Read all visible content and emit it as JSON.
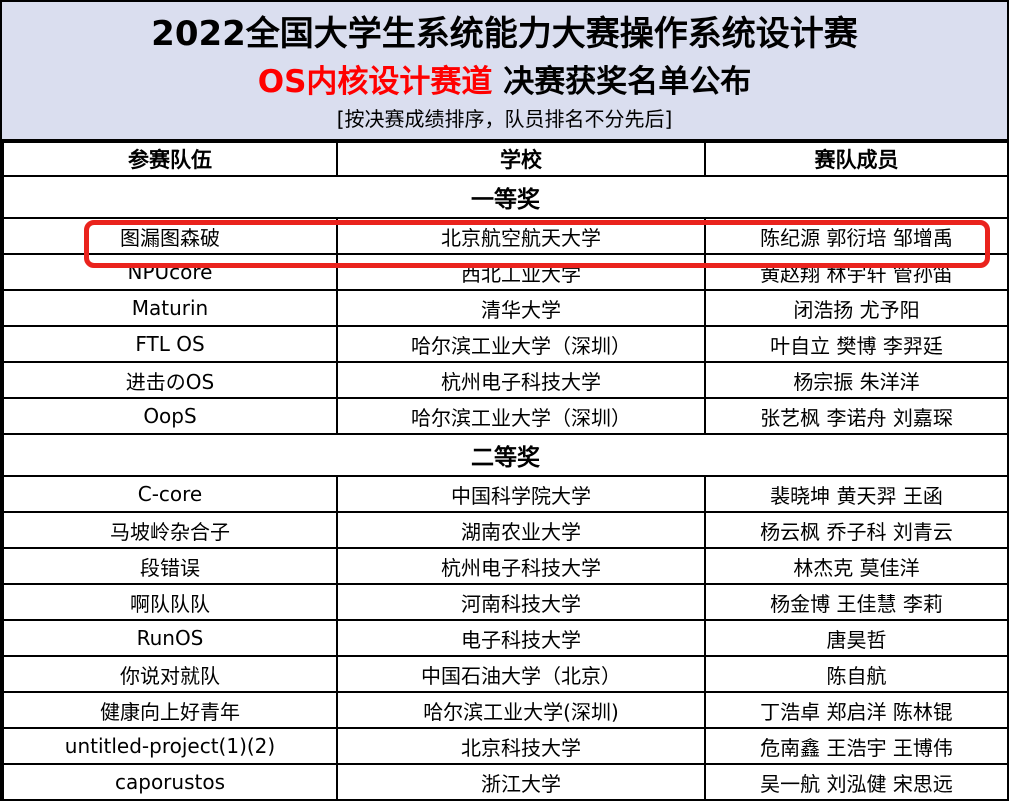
{
  "header": {
    "title": "2022全国大学生系统能力大赛操作系统设计赛",
    "subtitle_red": "OS内核设计赛道",
    "subtitle_black": " 决赛获奖名单公布",
    "note": "[按决赛成绩排序，队员排名不分先后]"
  },
  "table": {
    "columns": [
      "参赛队伍",
      "学校",
      "赛队成员"
    ],
    "sections": [
      {
        "award": "一等奖",
        "rows": [
          {
            "team": "图漏图森破",
            "school": "北京航空航天大学",
            "members": "陈纪源 郭衍培 邹增禹",
            "highlighted": true
          },
          {
            "team": "NPUcore",
            "school": "西北工业大学",
            "members": "黄赵翔 林宇轩 管孙笛",
            "highlighted": false
          },
          {
            "team": "Maturin",
            "school": "清华大学",
            "members": "闭浩扬 尤予阳",
            "highlighted": false
          },
          {
            "team": "FTL OS",
            "school": "哈尔滨工业大学（深圳）",
            "members": "叶自立 樊博 李羿廷",
            "highlighted": false
          },
          {
            "team": "进击のOS",
            "school": "杭州电子科技大学",
            "members": "杨宗振 朱洋洋",
            "highlighted": false
          },
          {
            "team": "OopS",
            "school": "哈尔滨工业大学（深圳）",
            "members": "张艺枫 李诺舟 刘嘉琛",
            "highlighted": false
          }
        ]
      },
      {
        "award": "二等奖",
        "rows": [
          {
            "team": "C-core",
            "school": "中国科学院大学",
            "members": "裴晓坤 黄天羿 王函",
            "highlighted": false
          },
          {
            "team": "马坡岭杂合子",
            "school": "湖南农业大学",
            "members": "杨云枫 乔子科 刘青云",
            "highlighted": false
          },
          {
            "team": "段错误",
            "school": "杭州电子科技大学",
            "members": "林杰克 莫佳洋",
            "highlighted": false
          },
          {
            "team": "啊队队队",
            "school": "河南科技大学",
            "members": "杨金博 王佳慧 李莉",
            "highlighted": false
          },
          {
            "team": "RunOS",
            "school": "电子科技大学",
            "members": "唐昊哲",
            "highlighted": false
          },
          {
            "team": "你说对就队",
            "school": "中国石油大学（北京）",
            "members": "陈自航",
            "highlighted": false
          },
          {
            "team": "健康向上好青年",
            "school": "哈尔滨工业大学(深圳)",
            "members": "丁浩卓 郑启洋 陈林锟",
            "highlighted": false
          },
          {
            "team": "untitled-project(1)(2)",
            "school": "北京科技大学",
            "members": "危南鑫 王浩宇 王博伟",
            "highlighted": false
          },
          {
            "team": "caporustos",
            "school": "浙江大学",
            "members": "吴一航 刘泓健 宋思远",
            "highlighted": false
          }
        ]
      }
    ]
  },
  "annotation": {
    "highlighted_team": "图漏图森破"
  },
  "colors": {
    "banner_bg": "#dadeef",
    "accent_red": "#ff0000",
    "highlight_border": "#ea231d",
    "border_black": "#000000"
  }
}
